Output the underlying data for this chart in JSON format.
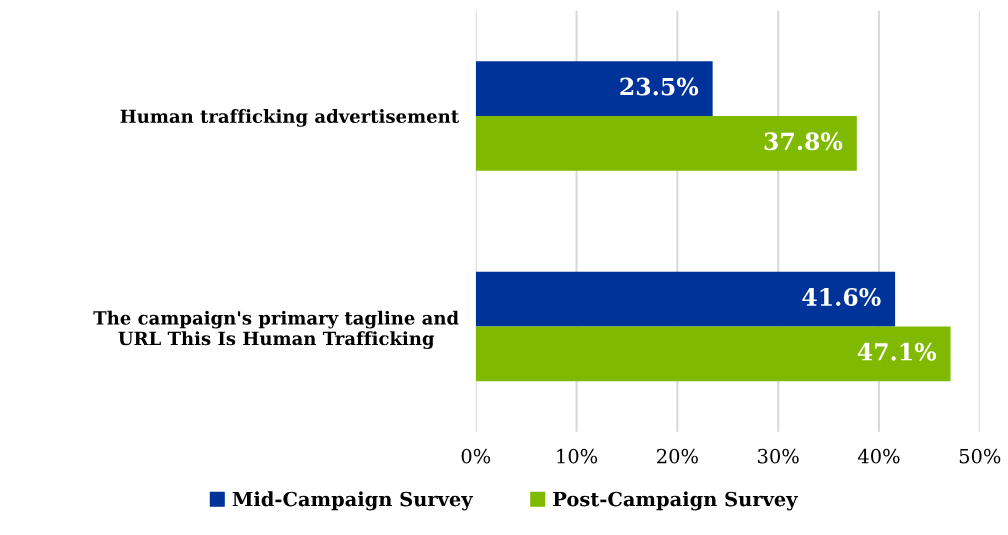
{
  "chart_data": {
    "type": "bar",
    "orientation": "horizontal",
    "categories": [
      "Human trafficking advertisement",
      "The campaign's primary tagline and URL This Is Human Trafficking"
    ],
    "series": [
      {
        "name": "Mid-Campaign Survey",
        "color": "#003399",
        "values": [
          23.5,
          41.6
        ],
        "value_labels": [
          "23.5%",
          "41.6%"
        ]
      },
      {
        "name": "Post-Campaign Survey",
        "color": "#7fba00",
        "values": [
          37.8,
          47.1
        ],
        "value_labels": [
          "37.8%",
          "47.1%"
        ]
      }
    ],
    "xlim": [
      0,
      50
    ],
    "xticks": [
      {
        "value": 0,
        "label": "0%"
      },
      {
        "value": 10,
        "label": "10%"
      },
      {
        "value": 20,
        "label": "20%"
      },
      {
        "value": 30,
        "label": "30%"
      },
      {
        "value": 40,
        "label": "40%"
      },
      {
        "value": 50,
        "label": "50%"
      }
    ],
    "grid": "x",
    "legend": "bottom"
  }
}
